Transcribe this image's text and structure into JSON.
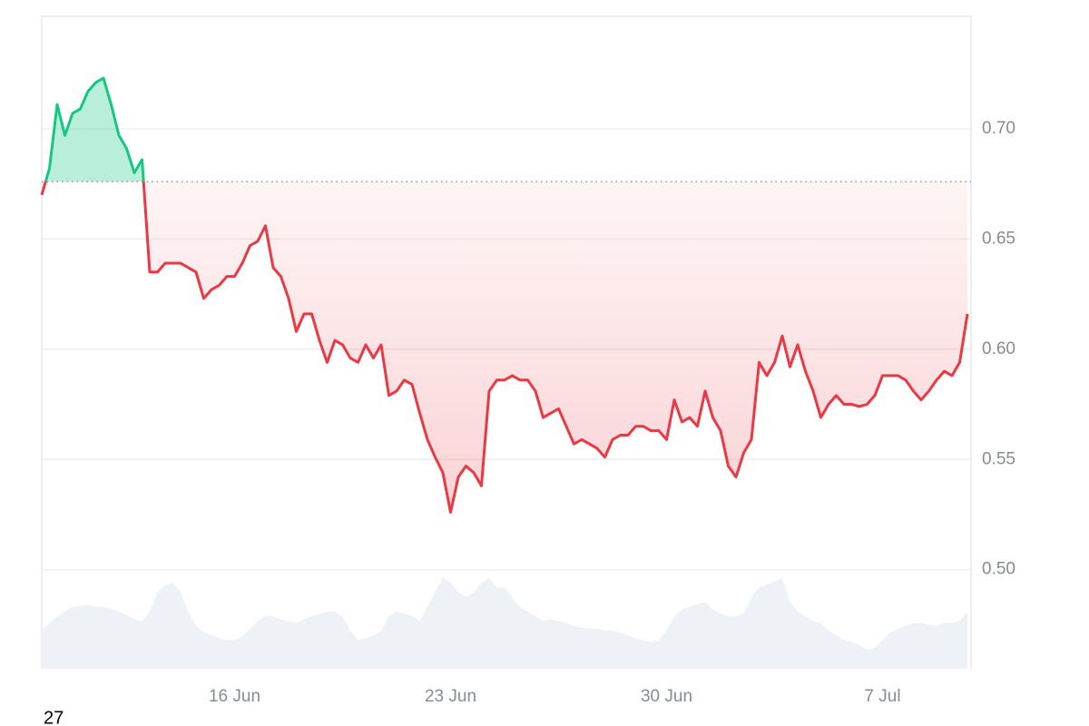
{
  "chart_data": {
    "type": "line",
    "categories": [
      null,
      null,
      null,
      null,
      null,
      null,
      null,
      null,
      null,
      null,
      null,
      null,
      null,
      null,
      null,
      null,
      null,
      null,
      null,
      null,
      null,
      null,
      null,
      null,
      null,
      "16 Jun",
      null,
      null,
      null,
      null,
      null,
      null,
      null,
      null,
      null,
      null,
      null,
      null,
      null,
      null,
      null,
      null,
      null,
      null,
      null,
      null,
      null,
      null,
      null,
      null,
      null,
      null,
      null,
      "23 Jun",
      null,
      null,
      null,
      null,
      null,
      null,
      null,
      null,
      null,
      null,
      null,
      null,
      null,
      null,
      null,
      null,
      null,
      null,
      null,
      null,
      null,
      null,
      null,
      null,
      null,
      null,
      null,
      "30 Jun",
      null,
      null,
      null,
      null,
      null,
      null,
      null,
      null,
      null,
      null,
      null,
      null,
      null,
      null,
      null,
      null,
      null,
      null,
      null,
      null,
      null,
      null,
      null,
      null,
      null,
      null,
      null,
      "7 Jul",
      null,
      null,
      null,
      null,
      null,
      null,
      null,
      null,
      null,
      null,
      null
    ],
    "series": [
      {
        "up_color": "#16c784",
        "down_color": "#ea3943",
        "values": [
          0.67,
          0.682,
          0.711,
          0.697,
          0.707,
          0.709,
          0.717,
          0.721,
          0.723,
          0.711,
          0.697,
          0.691,
          0.68,
          0.686,
          0.635,
          0.635,
          0.639,
          0.639,
          0.639,
          0.637,
          0.635,
          0.623,
          0.627,
          0.629,
          0.633,
          0.633,
          0.639,
          0.647,
          0.649,
          0.656,
          0.637,
          0.633,
          0.623,
          0.608,
          0.616,
          0.616,
          0.604,
          0.594,
          0.604,
          0.602,
          0.596,
          0.594,
          0.602,
          0.596,
          0.602,
          0.579,
          0.581,
          0.586,
          0.584,
          0.571,
          0.559,
          0.551,
          0.544,
          0.526,
          0.542,
          0.547,
          0.544,
          0.538,
          0.581,
          0.586,
          0.586,
          0.588,
          0.586,
          0.586,
          0.581,
          0.569,
          0.571,
          0.573,
          0.565,
          0.557,
          0.559,
          0.557,
          0.555,
          0.551,
          0.559,
          0.561,
          0.561,
          0.565,
          0.565,
          0.563,
          0.563,
          0.559,
          0.577,
          0.567,
          0.569,
          0.565,
          0.581,
          0.569,
          0.563,
          0.547,
          0.542,
          0.553,
          0.559,
          0.594,
          0.588,
          0.594,
          0.606,
          0.592,
          0.602,
          0.59,
          0.581,
          0.569,
          0.575,
          0.579,
          0.575,
          0.575,
          0.574,
          0.575,
          0.579,
          0.588,
          0.588,
          0.588,
          0.586,
          0.581,
          0.577,
          0.581,
          0.586,
          0.59,
          0.588,
          0.594,
          0.616
        ]
      }
    ],
    "volume": {
      "color": "#eef1f5",
      "values": [
        40,
        48,
        55,
        60,
        65,
        66,
        67,
        65,
        65,
        63,
        60,
        56,
        52,
        50,
        60,
        80,
        88,
        90,
        80,
        60,
        45,
        38,
        35,
        32,
        30,
        30,
        34,
        42,
        50,
        55,
        55,
        52,
        50,
        48,
        52,
        55,
        58,
        60,
        60,
        55,
        40,
        30,
        32,
        35,
        40,
        55,
        60,
        58,
        55,
        50,
        65,
        80,
        95,
        90,
        80,
        75,
        80,
        90,
        95,
        85,
        85,
        75,
        65,
        60,
        55,
        50,
        52,
        50,
        48,
        45,
        43,
        42,
        42,
        40,
        40,
        38,
        35,
        32,
        30,
        28,
        30,
        40,
        55,
        62,
        65,
        68,
        70,
        62,
        58,
        55,
        55,
        58,
        75,
        85,
        88,
        92,
        95,
        70,
        60,
        55,
        50,
        48,
        40,
        35,
        30,
        28,
        25,
        20,
        22,
        30,
        38,
        42,
        45,
        48,
        48,
        46,
        45,
        48,
        48,
        50,
        60
      ]
    },
    "baseline": 0.676,
    "ylim": [
      0.455,
      0.751
    ],
    "yticks": [
      {
        "value": 0.5,
        "label": "0.50"
      },
      0.55,
      {
        "value": 0.6,
        "label": "0.60"
      },
      0.65,
      {
        "value": 0.7,
        "label": "0.70"
      }
    ],
    "grid": true,
    "footer": "27"
  }
}
